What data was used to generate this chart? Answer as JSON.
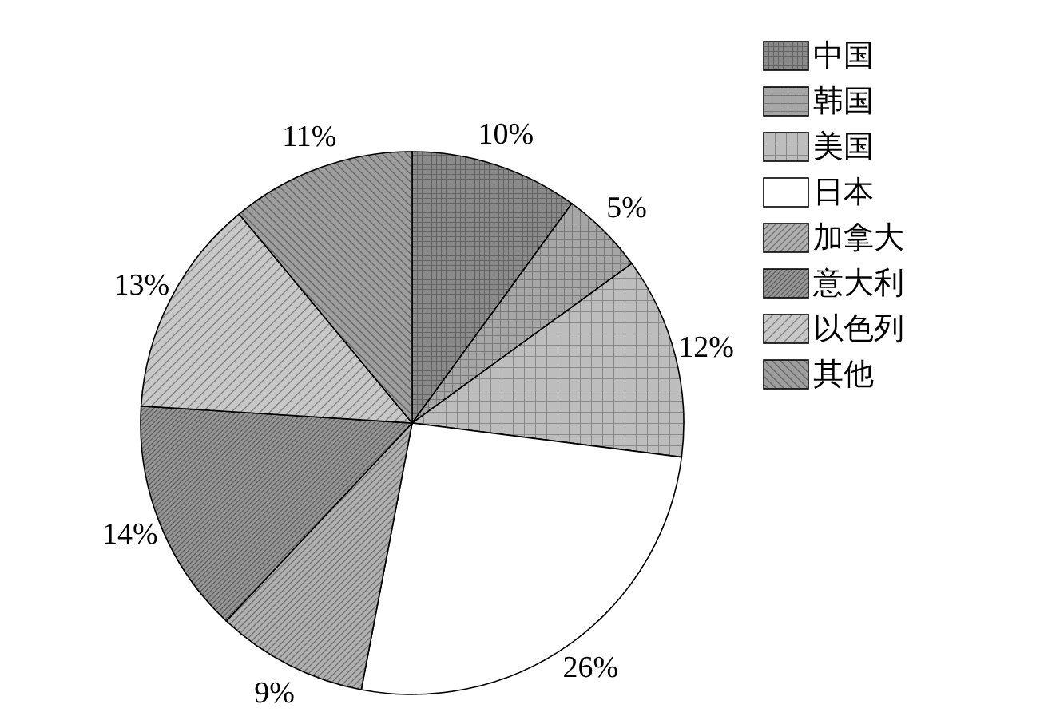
{
  "chart_data": {
    "type": "pie",
    "categories": [
      "中国",
      "韩国",
      "美国",
      "日本",
      "加拿大",
      "意大利",
      "以色列",
      "其他"
    ],
    "values": [
      10,
      5,
      12,
      26,
      9,
      14,
      13,
      11
    ],
    "value_labels": [
      "10%",
      "5%",
      "12%",
      "26%",
      "9%",
      "14%",
      "13%",
      "11%"
    ],
    "colors": [
      "#8a8a8a",
      "#a6a6a6",
      "#bdbdbd",
      "#ffffff",
      "#b0b0b0",
      "#969696",
      "#c8c8c8",
      "#9e9e9e"
    ],
    "legend": "top right"
  }
}
